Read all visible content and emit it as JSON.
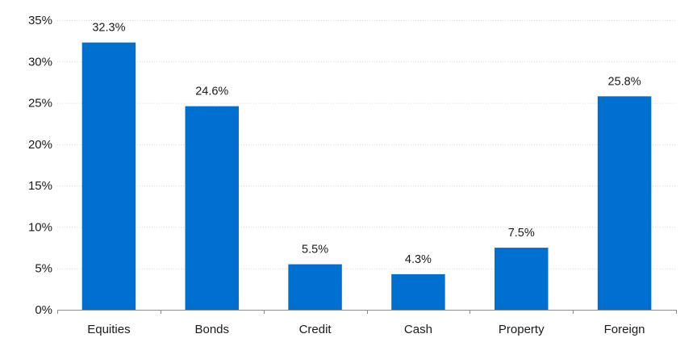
{
  "chart_data": {
    "type": "bar",
    "title": "",
    "xlabel": "",
    "ylabel": "",
    "categories": [
      "Equities",
      "Bonds",
      "Credit",
      "Cash",
      "Property",
      "Foreign"
    ],
    "values": [
      32.3,
      24.6,
      5.5,
      4.3,
      7.5,
      25.8
    ],
    "data_labels": [
      "32.3%",
      "24.6%",
      "5.5%",
      "4.3%",
      "7.5%",
      "25.8%"
    ],
    "ylim": [
      0,
      35
    ],
    "y_ticks": [
      0,
      5,
      10,
      15,
      20,
      25,
      30,
      35
    ],
    "y_tick_labels": [
      "0%",
      "5%",
      "10%",
      "15%",
      "20%",
      "25%",
      "30%",
      "35%"
    ],
    "grid": true,
    "legend": "none",
    "bar_color": "#0070d0"
  }
}
